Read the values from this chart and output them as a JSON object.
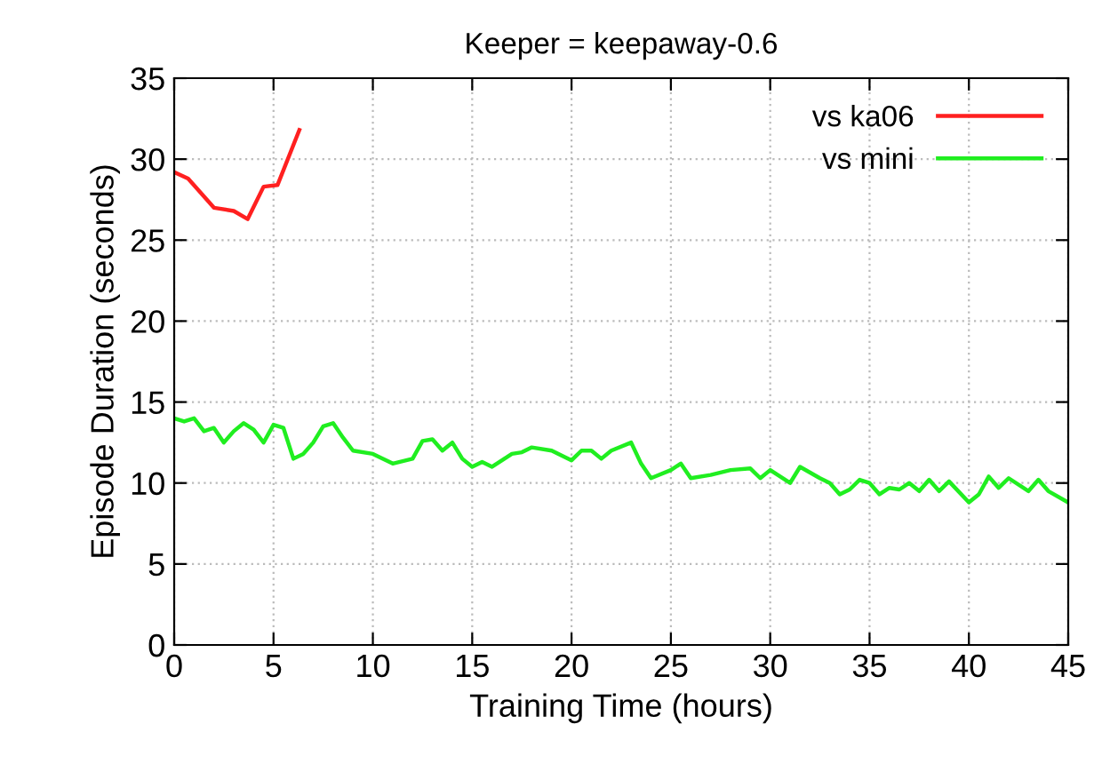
{
  "chart_data": {
    "type": "line",
    "title": "Keeper = keepaway-0.6",
    "xlabel": "Training Time (hours)",
    "ylabel": "Episode Duration (seconds)",
    "xlim": [
      0,
      45
    ],
    "ylim": [
      0,
      35
    ],
    "xticks": [
      0,
      5,
      10,
      15,
      20,
      25,
      30,
      35,
      40,
      45
    ],
    "yticks": [
      0,
      5,
      10,
      15,
      20,
      25,
      30,
      35
    ],
    "grid": true,
    "legend": "top right",
    "line_style": "solid",
    "marker": "none",
    "series": [
      {
        "name": "vs ka06",
        "color": "#ff2020",
        "x": [
          0,
          0.7,
          2,
          3,
          3.7,
          4.5,
          5.2,
          6.3
        ],
        "values": [
          29.2,
          28.8,
          27,
          26.8,
          26.3,
          28.3,
          28.4,
          31.8
        ]
      },
      {
        "name": "vs mini",
        "color": "#20ee20",
        "x": [
          0,
          0.5,
          1,
          1.5,
          2,
          2.5,
          3,
          3.5,
          4,
          4.5,
          5,
          5.5,
          6,
          6.5,
          7,
          7.5,
          8,
          8.5,
          9,
          10,
          11,
          12,
          12.5,
          13,
          13.5,
          14,
          14.5,
          15,
          15.5,
          16,
          17,
          17.5,
          18,
          19,
          20,
          20.5,
          21,
          21.5,
          22,
          23,
          23.5,
          24,
          25,
          25.5,
          26,
          27,
          28,
          29,
          29.5,
          30,
          30.5,
          31,
          31.5,
          32.5,
          33,
          33.5,
          34,
          34.5,
          35,
          35.5,
          36,
          36.5,
          37,
          37.5,
          38,
          38.5,
          39,
          40,
          40.5,
          41,
          41.5,
          42,
          43,
          43.5,
          44,
          45
        ],
        "values": [
          14,
          13.8,
          14,
          13.2,
          13.4,
          12.5,
          13.2,
          13.7,
          13.3,
          12.5,
          13.6,
          13.4,
          11.5,
          11.8,
          12.5,
          13.5,
          13.7,
          12.8,
          12,
          11.8,
          11.2,
          11.5,
          12.6,
          12.7,
          12,
          12.5,
          11.5,
          11,
          11.3,
          11,
          11.8,
          11.9,
          12.2,
          12,
          11.4,
          12,
          12,
          11.5,
          12,
          12.5,
          11.2,
          10.3,
          10.8,
          11.2,
          10.3,
          10.5,
          10.8,
          10.9,
          10.3,
          10.8,
          10.4,
          10,
          11,
          10.3,
          10,
          9.3,
          9.6,
          10.2,
          10,
          9.3,
          9.7,
          9.6,
          10,
          9.5,
          10.2,
          9.5,
          10.1,
          8.8,
          9.3,
          10.4,
          9.7,
          10.3,
          9.5,
          10.2,
          9.5,
          8.8
        ]
      }
    ]
  }
}
